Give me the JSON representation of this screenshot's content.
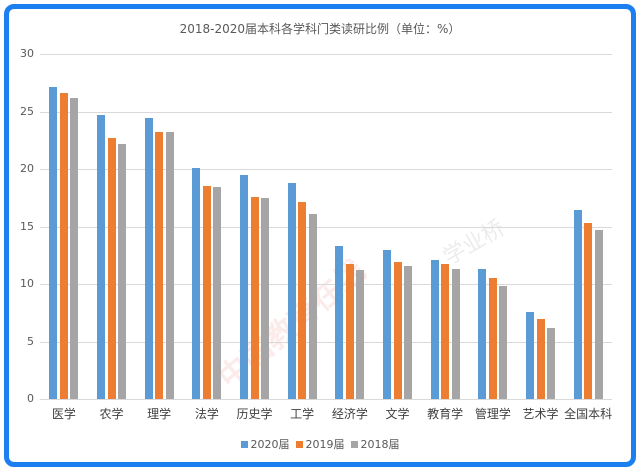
{
  "chart_data": {
    "type": "bar",
    "title": "2018-2020届本科各学科门类读研比例（单位：%）",
    "xlabel": "",
    "ylabel": "",
    "ylim": [
      0,
      30
    ],
    "yticks": [
      0,
      5,
      10,
      15,
      20,
      25,
      30
    ],
    "grid": true,
    "legend_position": "bottom",
    "categories": [
      "医学",
      "农学",
      "理学",
      "法学",
      "历史学",
      "工学",
      "经济学",
      "文学",
      "教育学",
      "管理学",
      "艺术学",
      "全国本科"
    ],
    "series": [
      {
        "name": "2020届",
        "color": "#5b9bd5",
        "values": [
          27.1,
          24.7,
          24.4,
          20.1,
          19.5,
          18.8,
          13.3,
          13.0,
          12.1,
          11.3,
          7.6,
          16.4
        ]
      },
      {
        "name": "2019届",
        "color": "#ed7d31",
        "values": [
          26.6,
          22.7,
          23.2,
          18.5,
          17.6,
          17.1,
          11.7,
          11.9,
          11.7,
          10.5,
          7.0,
          15.3
        ]
      },
      {
        "name": "2018届",
        "color": "#a5a5a5",
        "values": [
          26.2,
          22.2,
          23.2,
          18.4,
          17.5,
          16.1,
          11.2,
          11.6,
          11.3,
          9.8,
          6.2,
          14.7
        ]
      }
    ]
  },
  "frame": {
    "border_color": "#1b7ff0"
  },
  "watermark": {
    "text_1": "中国教育在线",
    "text_2": "学业桥"
  }
}
